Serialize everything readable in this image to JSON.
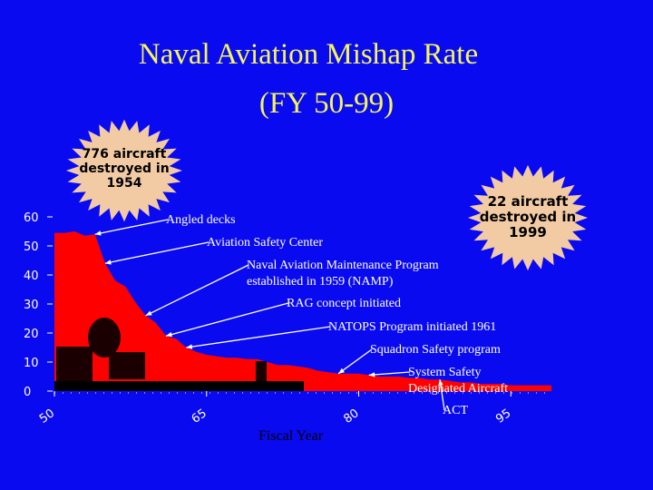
{
  "title": "Naval Aviation Mishap Rate",
  "subtitle": "(FY 50-99)",
  "colors": {
    "background": "#0a0af0",
    "title": "#f5f55a",
    "area": "#ff0000",
    "burst": "#f2cba4"
  },
  "bursts": [
    {
      "lines": [
        "776 aircraft",
        "destroyed in",
        "1954"
      ]
    },
    {
      "lines": [
        "22 aircraft",
        "destroyed in",
        "1999"
      ]
    }
  ],
  "annotations": [
    {
      "lines": [
        "Angled decks"
      ],
      "year": 1954
    },
    {
      "lines": [
        "Aviation Safety Center"
      ],
      "year": 1955
    },
    {
      "lines": [
        "Naval Aviation Maintenance Program",
        "established in 1959 (NAMP)"
      ],
      "year": 1959
    },
    {
      "lines": [
        "RAG concept initiated"
      ],
      "year": 1961
    },
    {
      "lines": [
        "NATOPS Program initiated 1961"
      ],
      "year": 1963
    },
    {
      "lines": [
        "Squadron Safety program"
      ],
      "year": 1978
    },
    {
      "lines": [
        "System Safety",
        "Designated Aircraft"
      ],
      "year": 1981
    },
    {
      "lines": [
        "ACT"
      ],
      "year": 1988
    }
  ],
  "chart_data": {
    "type": "area",
    "title": "Naval Aviation Mishap Rate",
    "subtitle": "(FY 50-99)",
    "xlabel": "Fiscal Year",
    "ylabel": "",
    "xlim": [
      1950,
      1999
    ],
    "ylim": [
      0,
      60
    ],
    "yticks": [
      "0",
      "10",
      "20",
      "30",
      "40",
      "50",
      "60"
    ],
    "xticks": [
      "50",
      "65",
      "80",
      "95"
    ],
    "x": [
      1950,
      1951,
      1952,
      1953,
      1954,
      1955,
      1956,
      1957,
      1958,
      1959,
      1960,
      1961,
      1962,
      1963,
      1964,
      1965,
      1966,
      1967,
      1968,
      1969,
      1970,
      1971,
      1972,
      1973,
      1974,
      1975,
      1976,
      1977,
      1978,
      1979,
      1980,
      1981,
      1982,
      1983,
      1984,
      1985,
      1986,
      1987,
      1988,
      1989,
      1990,
      1991,
      1992,
      1993,
      1994,
      1995,
      1996,
      1997,
      1998,
      1999
    ],
    "values": [
      54.5,
      54.5,
      55,
      53.5,
      54,
      44,
      38,
      36,
      30.5,
      26,
      23.5,
      19,
      18,
      15,
      13.5,
      12.5,
      12,
      11.5,
      11.5,
      11,
      11,
      10,
      9,
      9,
      8.5,
      8,
      7,
      6.5,
      6,
      6,
      6,
      5.5,
      5,
      5,
      5,
      4.5,
      4.5,
      4,
      4,
      3.5,
      3,
      3,
      2.5,
      2.5,
      2.5,
      2,
      2,
      2,
      2,
      2
    ]
  }
}
